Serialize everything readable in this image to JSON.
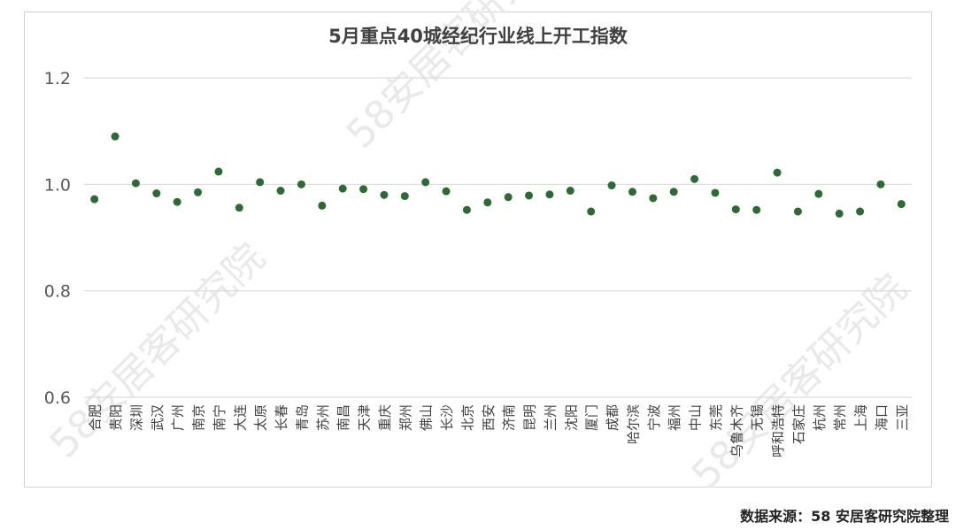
{
  "chart_data": {
    "type": "scatter",
    "title": "5月重点40城经纪行业线上开工指数",
    "xlabel": "",
    "ylabel": "",
    "ylim": [
      0.6,
      1.2
    ],
    "yticks": [
      "0.6",
      "0.8",
      "1.0",
      "1.2"
    ],
    "grid": true,
    "legend": "none",
    "categories": [
      "合肥",
      "贵阳",
      "深圳",
      "武汉",
      "广州",
      "南京",
      "南宁",
      "大连",
      "太原",
      "长春",
      "青岛",
      "苏州",
      "南昌",
      "天津",
      "重庆",
      "郑州",
      "佛山",
      "长沙",
      "北京",
      "西安",
      "济南",
      "昆明",
      "兰州",
      "沈阳",
      "厦门",
      "成都",
      "哈尔滨",
      "宁波",
      "福州",
      "中山",
      "东莞",
      "乌鲁木齐",
      "无锡",
      "呼和浩特",
      "石家庄",
      "杭州",
      "常州",
      "上海",
      "海口",
      "三亚"
    ],
    "values": [
      0.972,
      1.09,
      1.002,
      0.983,
      0.967,
      0.985,
      1.024,
      0.956,
      1.004,
      0.988,
      1.0,
      0.96,
      0.992,
      0.991,
      0.98,
      0.978,
      1.004,
      0.987,
      0.952,
      0.966,
      0.976,
      0.979,
      0.981,
      0.988,
      0.949,
      0.998,
      0.986,
      0.974,
      0.986,
      1.01,
      0.984,
      0.953,
      0.952,
      1.022,
      0.949,
      0.982,
      0.945,
      0.949,
      1.0,
      0.963
    ],
    "marker_color": "#2e6b34"
  },
  "source": "数据来源：58 安居客研究院整理",
  "watermark": "58安居客研究院"
}
